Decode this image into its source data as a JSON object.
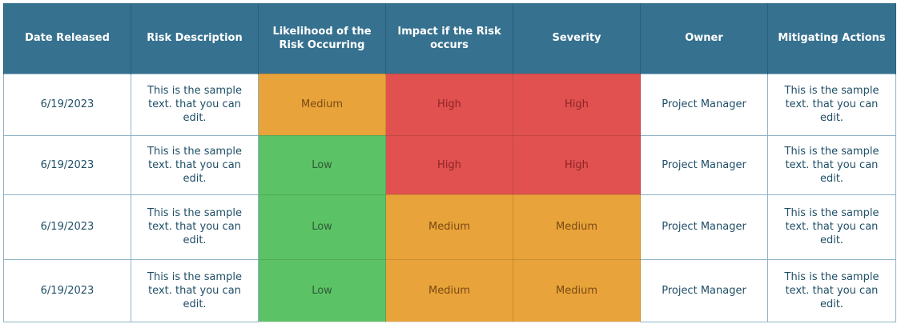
{
  "header": {
    "date_released": "Date Released",
    "risk_description": "Risk Description",
    "likelihood": "Likelihood  of the Risk Occurring",
    "impact": "Impact  if the Risk occurs",
    "severity": "Severity",
    "owner": "Owner",
    "mitigating_actions": "Mitigating Actions"
  },
  "level_colors": {
    "Low": "#5cc266",
    "Medium": "#e8a33a",
    "High": "#e05150"
  },
  "level_text_colors": {
    "Low": "#2f5a35",
    "Medium": "#7a4a12",
    "High": "#8e2424"
  },
  "rows": [
    {
      "date": "6/19/2023",
      "description": "This is the sample text. that you can edit.",
      "likelihood": "Medium",
      "impact": "High",
      "severity": "High",
      "owner": "Project Manager",
      "actions": "This is the sample text. that you can edit."
    },
    {
      "date": "6/19/2023",
      "description": "This is the sample text. that you can edit.",
      "likelihood": "Low",
      "impact": "High",
      "severity": "High",
      "owner": "Project Manager",
      "actions": "This is the sample text. that you can edit."
    },
    {
      "date": "6/19/2023",
      "description": "This is the sample text. that you can edit.",
      "likelihood": "Low",
      "impact": "Medium",
      "severity": "Medium",
      "owner": "Project Manager",
      "actions": "This is the sample text. that you can edit."
    },
    {
      "date": "6/19/2023",
      "description": "This is the sample text. that you can edit.",
      "likelihood": "Low",
      "impact": "Medium",
      "severity": "Medium",
      "owner": "Project Manager",
      "actions": "This is the sample text. that you can edit."
    }
  ]
}
